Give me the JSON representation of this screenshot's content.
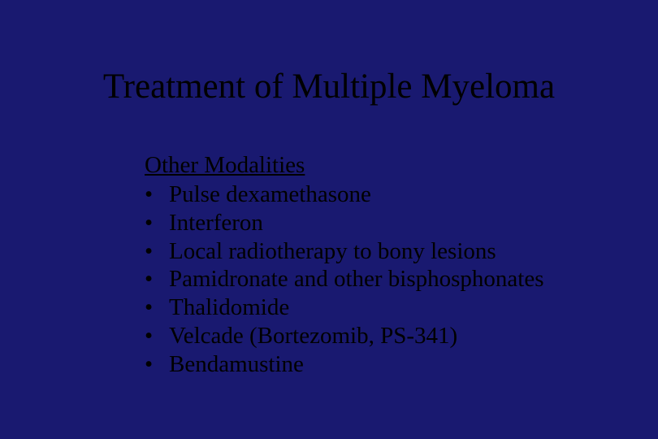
{
  "slide": {
    "background_color": "#191970",
    "text_color": "#000000",
    "font_family": "Times New Roman",
    "title": "Treatment of Multiple Myeloma",
    "title_fontsize": 43,
    "subtitle": "Other Modalities",
    "subtitle_fontsize": 29,
    "bullet_fontsize": 29,
    "bullets": [
      "Pulse dexamethasone",
      "Interferon",
      "Local radiotherapy to bony lesions",
      "Pamidronate and other bisphosphonates",
      "Thalidomide",
      "Velcade (Bortezomib, PS-341)",
      "Bendamustine"
    ]
  }
}
